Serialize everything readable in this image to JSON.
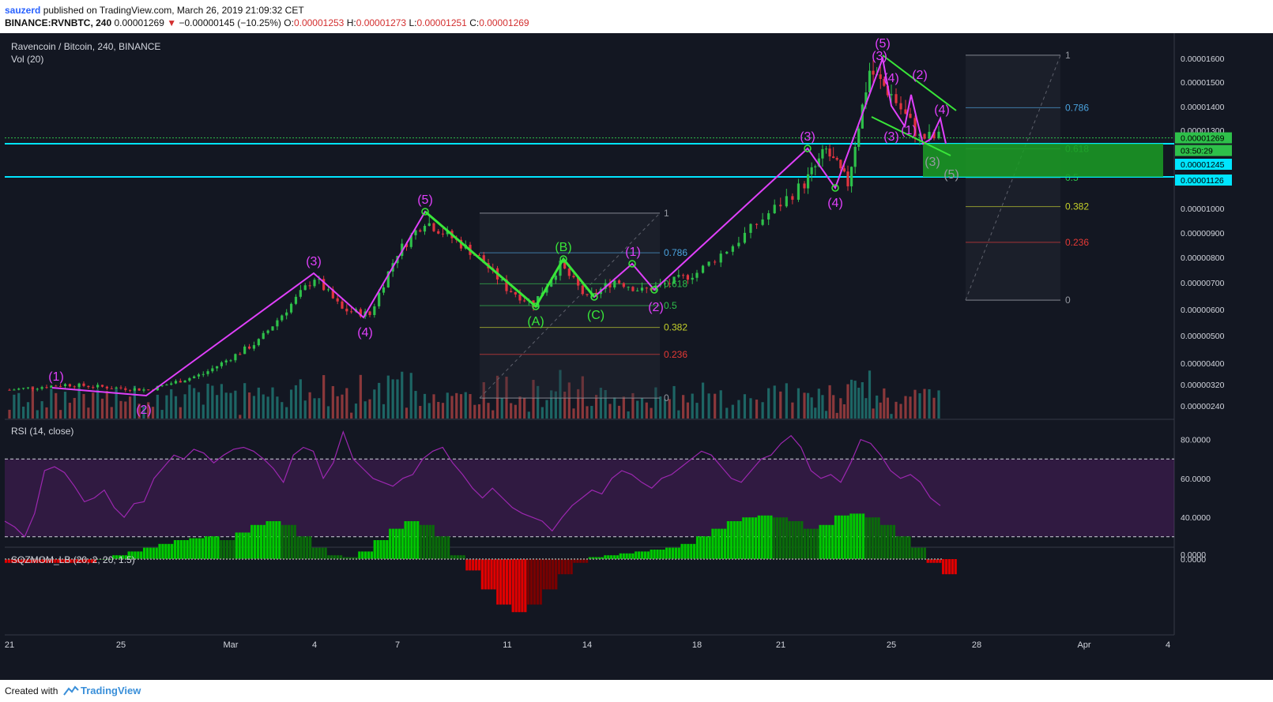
{
  "header": {
    "user": "sauzerd",
    "published": "published on TradingView.com, March 26, 2019 21:09:32 CET",
    "symbol": "BINANCE:RVNBTC, 240",
    "last": "0.00001269",
    "change": "−0.00000145 (−10.25%)",
    "o_label": "O:",
    "o": "0.00001253",
    "h_label": "H:",
    "h": "0.00001273",
    "l_label": "L:",
    "l": "0.00001251",
    "c_label": "C:",
    "c": "0.00001269"
  },
  "panes": {
    "main_title": "Ravencoin / Bitcoin, 240, BINANCE",
    "vol_title": "Vol (20)",
    "rsi_title": "RSI (14, close)",
    "sqz_title": "SQZMOM_LB (20, 2, 20, 1.5)"
  },
  "footer": {
    "created": "Created with",
    "brand": "TradingView"
  },
  "colors": {
    "background": "#131722",
    "up": "#26a69a",
    "down": "#ef5350",
    "candle_up": "#2ec04a",
    "candle_down": "#e0343f",
    "wave": "#e040fb",
    "channel": "#39e639",
    "level": "#00e5ff",
    "rsi": "#9c27b0",
    "fib_786": "#4aa3df",
    "fib_618": "#2ec04a",
    "fib_382": "#c6d22a",
    "fib_236": "#e53935"
  },
  "chart_data": {
    "type": "candlestick",
    "title": "Ravencoin / Bitcoin, 240, BINANCE",
    "x_ticks": [
      "21",
      "25",
      "Mar",
      "4",
      "7",
      "11",
      "14",
      "18",
      "21",
      "25",
      "28",
      "Apr",
      "4"
    ],
    "price_axis": [
      "0.00001600",
      "0.00001500",
      "0.00001400",
      "0.00001300",
      "0.00001000",
      "0.00000900",
      "0.00000800",
      "0.00000700",
      "0.00000600",
      "0.00000500",
      "0.00000400",
      "0.00000320",
      "0.00000240"
    ],
    "price_tags": [
      {
        "text": "0.00001269",
        "color": "#2ec04a"
      },
      {
        "text": "03:50:29",
        "color": "#2ec04a"
      },
      {
        "text": "0.00001245",
        "color": "#00e5ff"
      },
      {
        "text": "0.00001126",
        "color": "#00e5ff"
      }
    ],
    "horizontal_levels": [
      1.245e-05,
      1.126e-05
    ],
    "price_series": [
      [
        "2019-02-21",
        3e-06
      ],
      [
        "2019-02-23",
        3.2e-06
      ],
      [
        "2019-02-26",
        3e-06
      ],
      [
        "2019-02-28",
        3.6e-06
      ],
      [
        "2019-03-02",
        4.8e-06
      ],
      [
        "2019-03-04",
        7.2e-06
      ],
      [
        "2019-03-05",
        6e-06
      ],
      [
        "2019-03-06",
        5.8e-06
      ],
      [
        "2019-03-07",
        8.2e-06
      ],
      [
        "2019-03-08",
        9.5e-06
      ],
      [
        "2019-03-09",
        8.8e-06
      ],
      [
        "2019-03-10",
        8e-06
      ],
      [
        "2019-03-11",
        6.8e-06
      ],
      [
        "2019-03-12",
        6.2e-06
      ],
      [
        "2019-03-13",
        7.7e-06
      ],
      [
        "2019-03-14",
        6.4e-06
      ],
      [
        "2019-03-15",
        7.1e-06
      ],
      [
        "2019-03-16",
        6.7e-06
      ],
      [
        "2019-03-17",
        7e-06
      ],
      [
        "2019-03-18",
        7.4e-06
      ],
      [
        "2019-03-19",
        8.5e-06
      ],
      [
        "2019-03-20",
        9.8e-06
      ],
      [
        "2019-03-22",
        1.22e-05
      ],
      [
        "2019-03-23",
        1.1e-05
      ],
      [
        "2019-03-24",
        1.55e-05
      ],
      [
        "2019-03-25",
        1.45e-05
      ],
      [
        "2019-03-26",
        1.27e-05
      ]
    ],
    "wave_labels": [
      "(1)",
      "(2)",
      "(3)",
      "(4)",
      "(5)",
      "(A)",
      "(B)",
      "(C)",
      "(1)",
      "(2)",
      "(3)",
      "(4)",
      "(5)",
      "(3)",
      "(4)",
      "(3)",
      "(1)",
      "(2)",
      "(4)",
      "(3)",
      "(5)"
    ],
    "fib_left": [
      {
        "label": "1",
        "level": 1
      },
      {
        "label": "0.786",
        "level": 0.786
      },
      {
        "label": "0.618",
        "level": 0.618
      },
      {
        "label": "0.5",
        "level": 0.5
      },
      {
        "label": "0.382",
        "level": 0.382
      },
      {
        "label": "0.236",
        "level": 0.236
      },
      {
        "label": "0",
        "level": 0
      }
    ],
    "fib_right": [
      {
        "label": "1",
        "level": 1
      },
      {
        "label": "0.786",
        "level": 0.786
      },
      {
        "label": "0.618",
        "level": 0.618
      },
      {
        "label": "0.5",
        "level": 0.5
      },
      {
        "label": "0.382",
        "level": 0.382
      },
      {
        "label": "0.236",
        "level": 0.236
      },
      {
        "label": "0",
        "level": 0
      }
    ],
    "rsi": {
      "axis": [
        "80.0000",
        "60.0000",
        "40.0000"
      ],
      "upper": 70,
      "lower": 30,
      "values": [
        38,
        35,
        30,
        42,
        64,
        66,
        63,
        56,
        48,
        50,
        54,
        45,
        40,
        47,
        48,
        60,
        66,
        72,
        70,
        75,
        73,
        68,
        72,
        75,
        76,
        74,
        70,
        65,
        58,
        72,
        76,
        74,
        60,
        68,
        84,
        70,
        65,
        60,
        58,
        56,
        60,
        62,
        70,
        74,
        76,
        68,
        62,
        55,
        50,
        55,
        50,
        45,
        42,
        40,
        38,
        33,
        40,
        46,
        50,
        54,
        52,
        60,
        64,
        62,
        58,
        55,
        60,
        62,
        66,
        70,
        74,
        72,
        66,
        60,
        58,
        64,
        70,
        72,
        78,
        82,
        76,
        64,
        60,
        62,
        58,
        68,
        80,
        78,
        72,
        64,
        60,
        62,
        58,
        50,
        46
      ]
    },
    "squeeze": {
      "axis": [
        "0.0000",
        "0.0000"
      ],
      "values": [
        -0.1,
        -0.1,
        -0.1,
        -0.1,
        -0.1,
        -0.1,
        0,
        0.1,
        0.2,
        0.3,
        0.4,
        0.5,
        0.55,
        0.6,
        0.5,
        0.7,
        0.9,
        1.0,
        0.9,
        0.6,
        0.3,
        0.1,
        0.05,
        0.2,
        0.5,
        0.8,
        1.0,
        0.9,
        0.6,
        0.1,
        -0.3,
        -0.8,
        -1.2,
        -1.4,
        -1.2,
        -0.8,
        -0.4,
        -0.1,
        0.05,
        0.1,
        0.15,
        0.2,
        0.25,
        0.3,
        0.4,
        0.6,
        0.8,
        1.0,
        1.1,
        1.15,
        1.1,
        1.0,
        0.8,
        0.9,
        1.15,
        1.2,
        1.1,
        0.9,
        0.6,
        0.3,
        -0.1,
        -0.4
      ]
    }
  }
}
